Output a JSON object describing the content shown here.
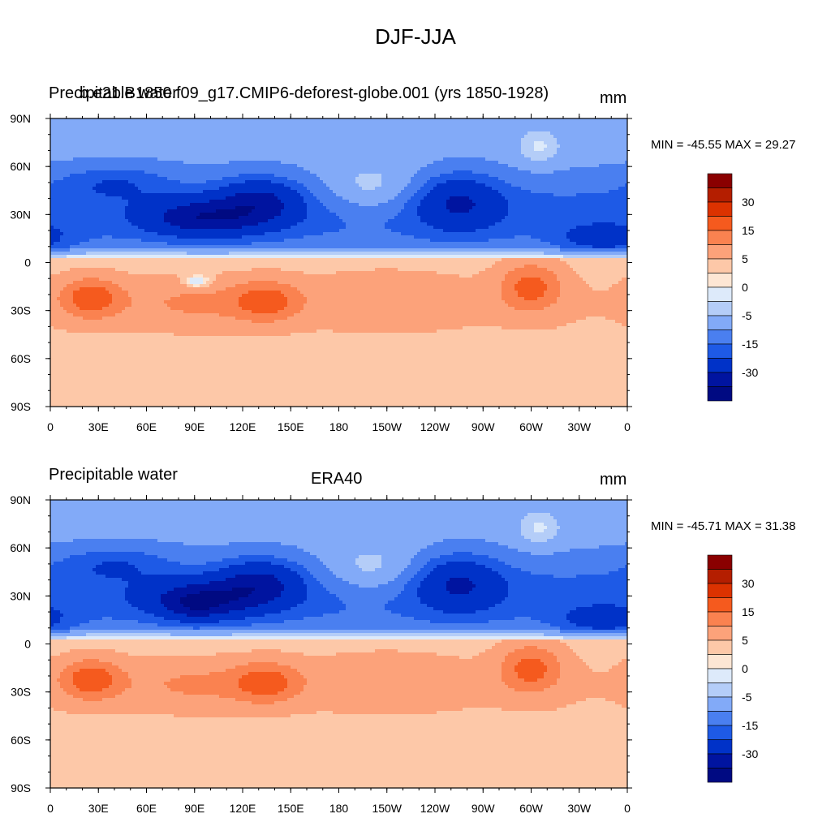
{
  "figure": {
    "title": "DJF-JJA"
  },
  "colors": {
    "levels": [
      "#8a0000",
      "#b41e00",
      "#dc3200",
      "#f55a1e",
      "#fa8250",
      "#fca27a",
      "#fdc8a8",
      "#fde6d4",
      "#ddeafa",
      "#b4cdf8",
      "#82aaf8",
      "#4a7ff0",
      "#1e5ae6",
      "#0032c8",
      "#0014a0",
      "#000a82"
    ]
  },
  "chart_data": [
    {
      "type": "heatmap",
      "variable": "Precipitable water",
      "case": "b.e21.B1850.f09_g17.CMIP6-deforest-globe.001 (yrs 1850-1928)",
      "units": "mm",
      "min_max_text": "MIN = -45.55 MAX =  29.27",
      "min": -45.55,
      "max": 29.27,
      "colorbar_labels": [
        "30",
        "15",
        "5",
        "0",
        "-5",
        "-15",
        "-30"
      ],
      "contour_levels": [
        -40,
        -30,
        -20,
        -15,
        -10,
        -5,
        -2,
        0,
        2,
        5,
        10,
        15,
        20,
        30,
        40
      ],
      "y_ticks": [
        "90N",
        "60N",
        "30N",
        "0",
        "30S",
        "60S",
        "90S"
      ],
      "x_ticks": [
        "0",
        "30E",
        "60E",
        "90E",
        "120E",
        "150E",
        "180",
        "150W",
        "120W",
        "90W",
        "60W",
        "30W",
        "0"
      ]
    },
    {
      "type": "heatmap",
      "variable": "Precipitable water",
      "case": "ERA40",
      "units": "mm",
      "min_max_text": "MIN = -45.71 MAX =  31.38",
      "min": -45.71,
      "max": 31.38,
      "colorbar_labels": [
        "30",
        "15",
        "5",
        "0",
        "-5",
        "-15",
        "-30"
      ],
      "contour_levels": [
        -40,
        -30,
        -20,
        -15,
        -10,
        -5,
        -2,
        0,
        2,
        5,
        10,
        15,
        20,
        30,
        40
      ],
      "y_ticks": [
        "90N",
        "60N",
        "30N",
        "0",
        "30S",
        "60S",
        "90S"
      ],
      "x_ticks": [
        "0",
        "30E",
        "60E",
        "90E",
        "120E",
        "150E",
        "180",
        "150W",
        "120W",
        "90W",
        "60W",
        "30W",
        "0"
      ]
    }
  ]
}
